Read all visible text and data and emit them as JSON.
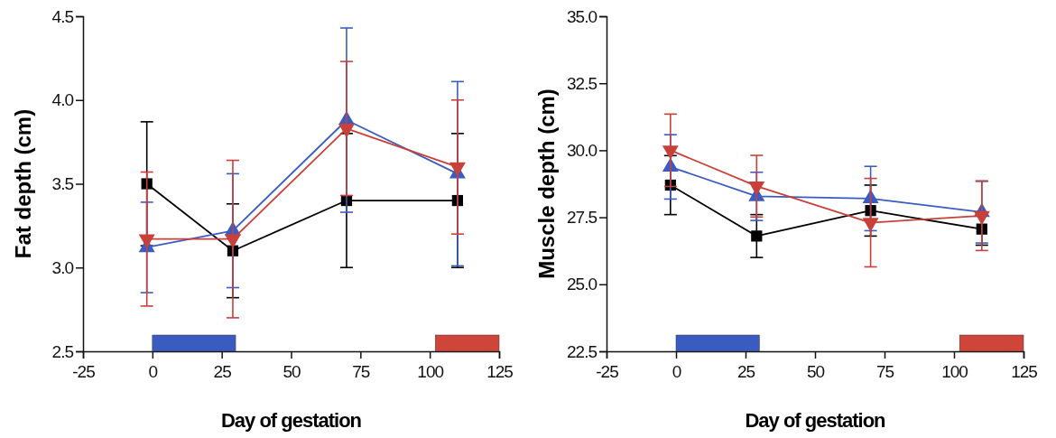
{
  "chart_data": [
    {
      "type": "line",
      "xlabel": "Day of gestation",
      "ylabel": "Fat depth (cm)",
      "xlim": [
        -25,
        125
      ],
      "xticks": [
        -25,
        0,
        25,
        50,
        75,
        100,
        125
      ],
      "ylim": [
        2.5,
        4.5
      ],
      "yticks": [
        2.5,
        {
          "value": 3,
          "label": "3.0"
        },
        3.5,
        {
          "value": 4,
          "label": "4.0"
        },
        4.5
      ],
      "grid": false,
      "line_style": "solid",
      "x": [
        -2,
        29,
        70,
        110
      ],
      "series": [
        {
          "color": "#000000",
          "marker": "square",
          "values": [
            3.5,
            3.1,
            3.4,
            3.4
          ],
          "errors": [
            0.37,
            0.28,
            0.4,
            0.4
          ]
        },
        {
          "color": "#3a5cc0",
          "marker": "triangle",
          "values": [
            3.12,
            3.22,
            3.88,
            3.56
          ],
          "errors": [
            0.27,
            0.34,
            0.55,
            0.55
          ]
        },
        {
          "color": "#c8403a",
          "marker": "triangle-down",
          "values": [
            3.17,
            3.17,
            3.83,
            3.6
          ],
          "errors": [
            0.4,
            0.47,
            0.4,
            0.4
          ]
        }
      ],
      "bands": [
        {
          "axis": "x",
          "from": 0,
          "to": 30,
          "color": "#3a5cc0"
        },
        {
          "axis": "x",
          "from": 102,
          "to": 125,
          "color": "#d0453a"
        }
      ]
    },
    {
      "type": "line",
      "xlabel": "Day of gestation",
      "ylabel": "Muscle depth (cm)",
      "xlim": [
        -25,
        125
      ],
      "xticks": [
        -25,
        0,
        25,
        50,
        75,
        100,
        125
      ],
      "ylim": [
        22.5,
        35
      ],
      "yticks": [
        22.5,
        {
          "value": 25,
          "label": "25.0"
        },
        27.5,
        {
          "value": 30,
          "label": "30.0"
        },
        32.5,
        {
          "value": 35,
          "label": "35.0"
        }
      ],
      "grid": false,
      "line_style": "solid",
      "x": [
        -2,
        29,
        70,
        110
      ],
      "series": [
        {
          "color": "#000000",
          "marker": "square",
          "values": [
            28.7,
            26.8,
            27.75,
            27.06
          ],
          "errors": [
            1.1,
            0.8,
            0.95,
            0.6
          ]
        },
        {
          "color": "#3a5cc0",
          "marker": "triangle",
          "values": [
            29.38,
            28.28,
            28.2,
            27.69
          ],
          "errors": [
            1.2,
            0.9,
            1.2,
            1.15
          ]
        },
        {
          "color": "#c8403a",
          "marker": "triangle-down",
          "values": [
            30.0,
            28.66,
            27.3,
            27.56
          ],
          "errors": [
            1.35,
            1.15,
            1.65,
            1.3
          ]
        }
      ],
      "bands": [
        {
          "axis": "x",
          "from": 0,
          "to": 30,
          "color": "#3a5cc0"
        },
        {
          "axis": "x",
          "from": 102,
          "to": 125,
          "color": "#d0453a"
        }
      ]
    }
  ]
}
